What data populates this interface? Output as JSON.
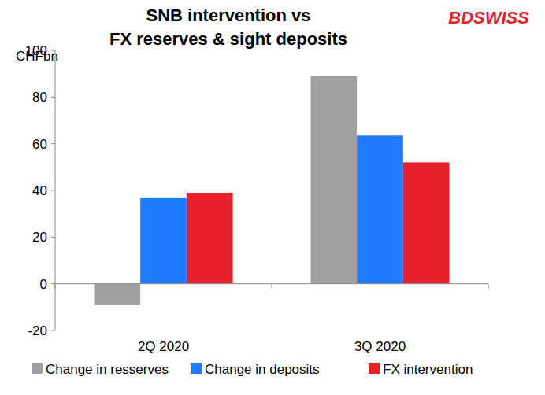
{
  "chart_data": {
    "type": "bar",
    "title": "SNB intervention vs\nFX reserves & sight deposits",
    "ylabel": "CHFbn",
    "annotations": [
      "BDSWISS"
    ],
    "categories": [
      "2Q 2020",
      "3Q 2020"
    ],
    "series": [
      {
        "name": "Change in resserves",
        "color": "#a0a0a0",
        "values": [
          -9,
          89
        ]
      },
      {
        "name": "Change in deposits",
        "color": "#1f7bff",
        "values": [
          37,
          63.5
        ]
      },
      {
        "name": "FX intervention",
        "color": "#e8202a",
        "values": [
          39,
          52
        ]
      }
    ],
    "ylim": [
      -20,
      100
    ],
    "yticks": [
      -20,
      0,
      20,
      40,
      60,
      80,
      100
    ],
    "grid": false,
    "legend": "bottom"
  }
}
